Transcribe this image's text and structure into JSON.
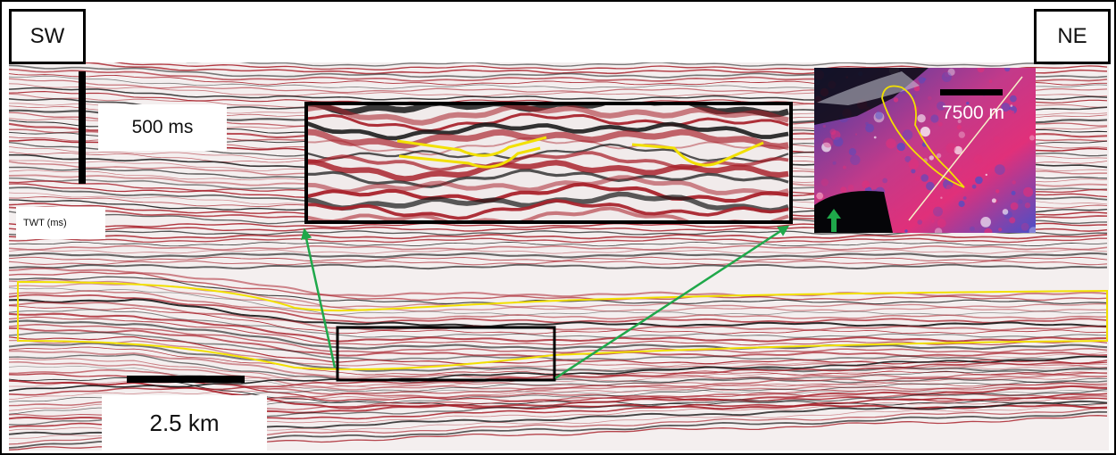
{
  "labels": {
    "sw": "SW",
    "ne": "NE",
    "vertical_scale": "500 ms",
    "twt": "TWT (ms)",
    "horizontal_scale": "2.5 km",
    "map_scale": "7500 m"
  },
  "colors": {
    "background": "#f4efef",
    "reflector_red": "#a8212b",
    "reflector_black": "#1a1a1a",
    "highlight": "#f2e000",
    "arrow": "#1fa84a",
    "map_magenta": "#e0307a",
    "map_blue": "#4a4fc8",
    "map_dark": "#0a0a12"
  },
  "icons": {
    "north_arrow": "up-arrow-icon",
    "callout_arrows": "green-arrow-icon"
  }
}
